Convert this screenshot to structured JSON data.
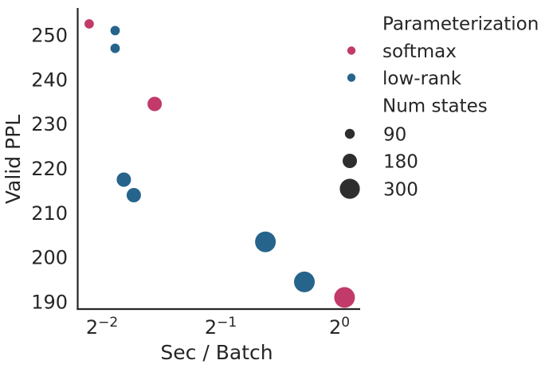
{
  "figure": {
    "background": "#ffffff",
    "text_color": "#262626",
    "axis_color": "#262626"
  },
  "chart_data": {
    "type": "scatter",
    "xlabel": "Sec / Batch",
    "ylabel": "Valid PPL",
    "x_scale": "log2",
    "grid": false,
    "legend_position": "right",
    "x_ticks": [
      {
        "base": "2",
        "exp": "−2",
        "value": 0.25
      },
      {
        "base": "2",
        "exp": "−1",
        "value": 0.5
      },
      {
        "base": "2",
        "exp": "0",
        "value": 1
      }
    ],
    "y_ticks": [
      250,
      240,
      230,
      220,
      210,
      200,
      190
    ],
    "xlim": [
      0.216,
      1.13
    ],
    "ylim": [
      188.5,
      255.9
    ],
    "series": [
      {
        "name": "softmax",
        "color": "#c13a6a",
        "points": [
          {
            "x": 0.232,
            "y": 252.5,
            "num_states": 90
          },
          {
            "x": 0.34,
            "y": 234.5,
            "num_states": 180
          },
          {
            "x": 1.03,
            "y": 191,
            "num_states": 300
          }
        ]
      },
      {
        "name": "low-rank",
        "color": "#26648c",
        "points": [
          {
            "x": 0.27,
            "y": 251,
            "num_states": 90
          },
          {
            "x": 0.27,
            "y": 247,
            "num_states": 90
          },
          {
            "x": 0.284,
            "y": 217.5,
            "num_states": 180
          },
          {
            "x": 0.301,
            "y": 214,
            "num_states": 180
          },
          {
            "x": 0.649,
            "y": 203.5,
            "num_states": 300
          },
          {
            "x": 0.815,
            "y": 194.5,
            "num_states": 300
          }
        ]
      }
    ],
    "legend": {
      "color_title": "Parameterization",
      "size_title": "Num states",
      "size_entries": [
        {
          "label": "90",
          "value": 90
        },
        {
          "label": "180",
          "value": 180
        },
        {
          "label": "300",
          "value": 300
        }
      ],
      "size_marker_color": "#2e2e2e"
    }
  }
}
